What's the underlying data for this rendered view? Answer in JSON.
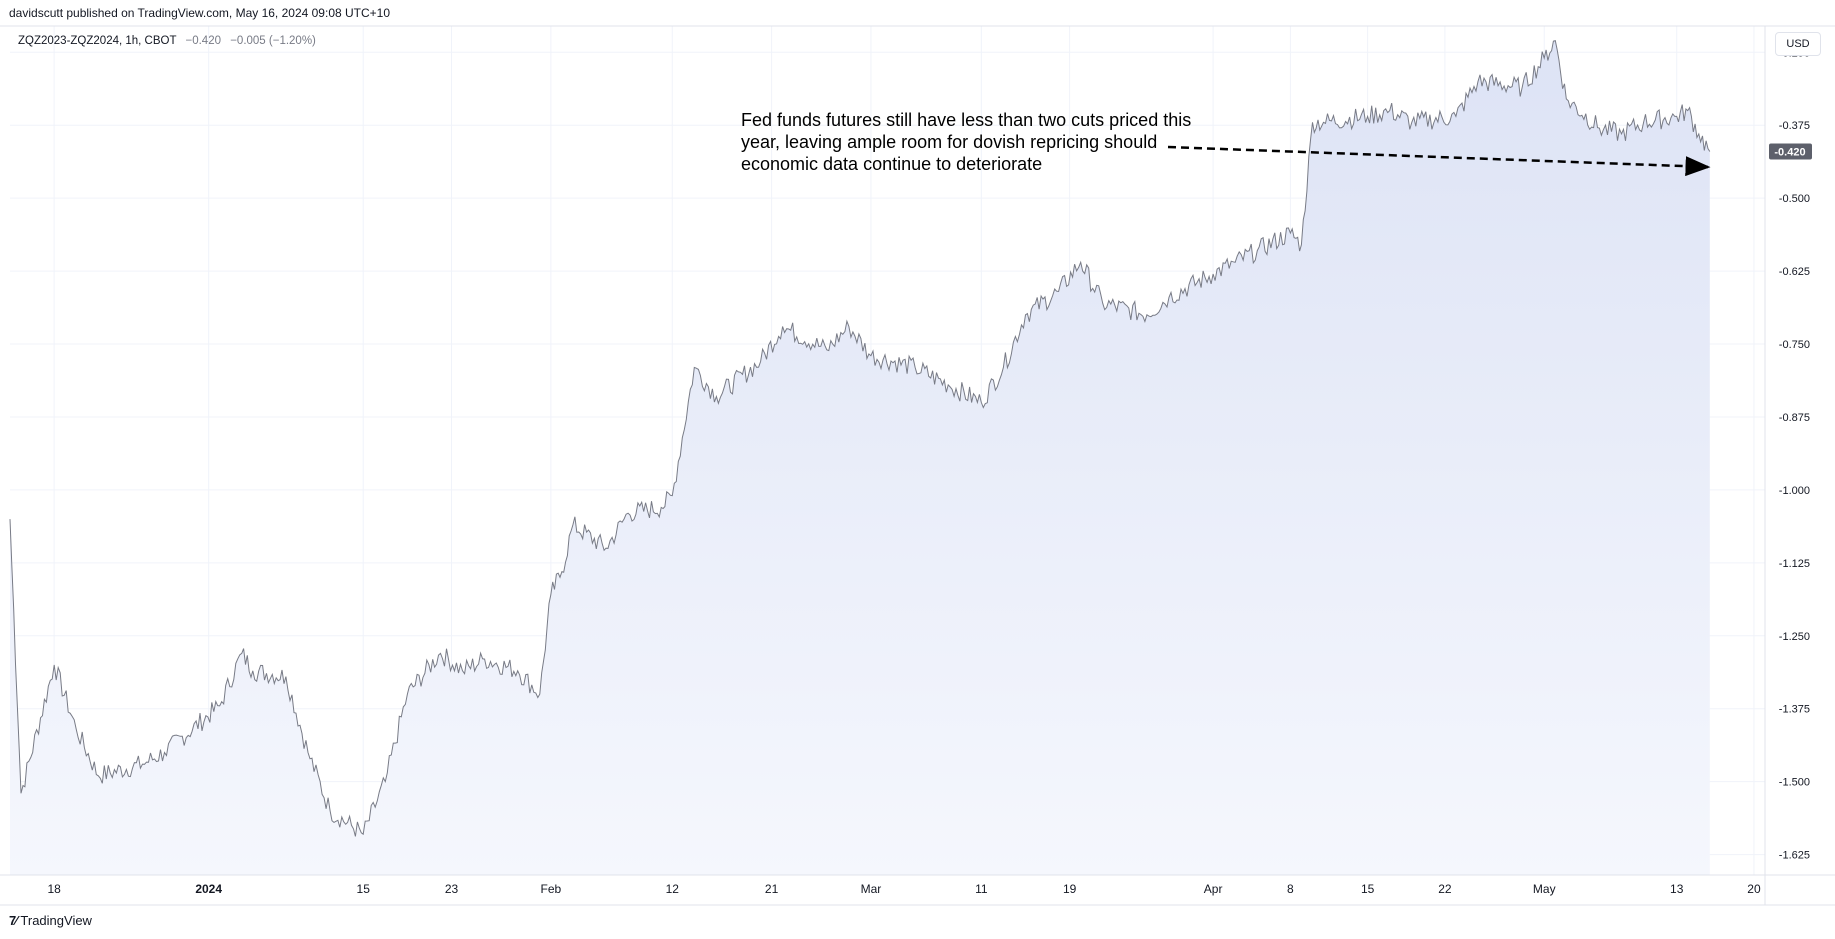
{
  "header": {
    "published_line": "davidscutt published on TradingView.com, May 16, 2024 09:08 UTC+10"
  },
  "legend": {
    "symbol": "ZQZ2023-ZQZ2024, 1h, CBOT",
    "last": "−0.420",
    "change": "−0.005 (−1.20%)"
  },
  "currency_button": "USD",
  "annotation_text": "Fed funds futures still have less than two cuts priced this year, leaving ample room for dovish repricing should economic data continue to deteriorate",
  "footer": {
    "brand": "TradingView",
    "logo_text": "7∕"
  },
  "colors": {
    "line": "#787b86",
    "area_top": "#dde3f5",
    "area_bottom": "#f5f7fd",
    "grid": "#f0f3fa",
    "badge": "#5d606b",
    "arrow": "#000000"
  },
  "chart_data": {
    "type": "area",
    "title": "",
    "xlabel": "",
    "ylabel": "",
    "ylim": [
      -1.66,
      -0.205
    ],
    "y_ticks": [
      {
        "value": -0.25,
        "label": "-0.250"
      },
      {
        "value": -0.375,
        "label": "-0.375"
      },
      {
        "value": -0.5,
        "label": "-0.500"
      },
      {
        "value": -0.625,
        "label": "-0.625"
      },
      {
        "value": -0.75,
        "label": "-0.750"
      },
      {
        "value": -0.875,
        "label": "-0.875"
      },
      {
        "value": -1.0,
        "label": "-1.000"
      },
      {
        "value": -1.125,
        "label": "-1.125"
      },
      {
        "value": -1.25,
        "label": "-1.250"
      },
      {
        "value": -1.375,
        "label": "-1.375"
      },
      {
        "value": -1.5,
        "label": "-1.500"
      },
      {
        "value": -1.625,
        "label": "-1.625"
      }
    ],
    "x_ticks": [
      {
        "label": "18",
        "date": "2023-12-18",
        "bold": false
      },
      {
        "label": "2024",
        "date": "2024-01-01",
        "bold": true
      },
      {
        "label": "15",
        "date": "2024-01-15",
        "bold": false
      },
      {
        "label": "23",
        "date": "2024-01-23",
        "bold": false
      },
      {
        "label": "Feb",
        "date": "2024-02-01",
        "bold": false
      },
      {
        "label": "12",
        "date": "2024-02-12",
        "bold": false
      },
      {
        "label": "21",
        "date": "2024-02-21",
        "bold": false
      },
      {
        "label": "Mar",
        "date": "2024-03-01",
        "bold": false
      },
      {
        "label": "11",
        "date": "2024-03-11",
        "bold": false
      },
      {
        "label": "19",
        "date": "2024-03-19",
        "bold": false
      },
      {
        "label": "Apr",
        "date": "2024-04-01",
        "bold": false
      },
      {
        "label": "8",
        "date": "2024-04-08",
        "bold": false
      },
      {
        "label": "15",
        "date": "2024-04-15",
        "bold": false
      },
      {
        "label": "22",
        "date": "2024-04-22",
        "bold": false
      },
      {
        "label": "May",
        "date": "2024-05-01",
        "bold": false
      },
      {
        "label": "13",
        "date": "2024-05-13",
        "bold": false
      },
      {
        "label": "20",
        "date": "2024-05-20",
        "bold": false
      }
    ],
    "last_value_label": "-0.420",
    "series": [
      {
        "x": [
          "2023-12-14",
          "2023-12-15",
          "2023-12-18",
          "2023-12-20",
          "2023-12-22",
          "2023-12-26",
          "2023-12-28",
          "2024-01-02",
          "2024-01-04",
          "2024-01-05",
          "2024-01-08",
          "2024-01-10",
          "2024-01-12",
          "2024-01-15",
          "2024-01-17",
          "2024-01-19",
          "2024-01-22",
          "2024-01-24",
          "2024-01-26",
          "2024-01-29",
          "2024-01-31",
          "2024-02-01",
          "2024-02-02",
          "2024-02-03",
          "2024-02-06",
          "2024-02-08",
          "2024-02-11",
          "2024-02-12",
          "2024-02-14",
          "2024-02-16",
          "2024-02-20",
          "2024-02-22",
          "2024-02-26",
          "2024-02-28",
          "2024-03-01",
          "2024-03-05",
          "2024-03-08",
          "2024-03-11",
          "2024-03-13",
          "2024-03-15",
          "2024-03-18",
          "2024-03-20",
          "2024-03-22",
          "2024-03-26",
          "2024-03-28",
          "2024-04-01",
          "2024-04-03",
          "2024-04-05",
          "2024-04-08",
          "2024-04-09",
          "2024-04-10",
          "2024-04-11",
          "2024-04-15",
          "2024-04-17",
          "2024-04-19",
          "2024-04-23",
          "2024-04-25",
          "2024-04-29",
          "2024-05-01",
          "2024-05-02",
          "2024-05-03",
          "2024-05-06",
          "2024-05-08",
          "2024-05-10",
          "2024-05-13",
          "2024-05-14",
          "2024-05-15",
          "2024-05-16"
        ],
        "y": [
          -1.05,
          -1.52,
          -1.3,
          -1.41,
          -1.49,
          -1.47,
          -1.45,
          -1.37,
          -1.28,
          -1.31,
          -1.32,
          -1.45,
          -1.55,
          -1.59,
          -1.5,
          -1.35,
          -1.28,
          -1.31,
          -1.29,
          -1.31,
          -1.35,
          -1.18,
          -1.14,
          -1.06,
          -1.1,
          -1.04,
          -1.03,
          -1.01,
          -0.79,
          -0.84,
          -0.78,
          -0.72,
          -0.76,
          -0.72,
          -0.77,
          -0.79,
          -0.82,
          -0.85,
          -0.79,
          -0.7,
          -0.66,
          -0.61,
          -0.68,
          -0.7,
          -0.67,
          -0.63,
          -0.61,
          -0.59,
          -0.56,
          -0.58,
          -0.37,
          -0.37,
          -0.36,
          -0.35,
          -0.37,
          -0.36,
          -0.3,
          -0.31,
          -0.26,
          -0.23,
          -0.33,
          -0.38,
          -0.39,
          -0.37,
          -0.36,
          -0.35,
          -0.39,
          -0.42
        ]
      }
    ]
  }
}
